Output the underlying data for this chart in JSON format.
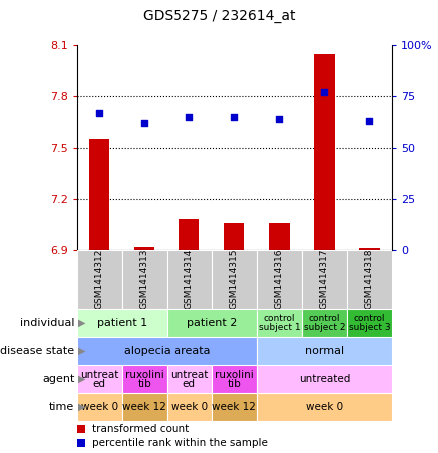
{
  "title": "GDS5275 / 232614_at",
  "samples": [
    "GSM1414312",
    "GSM1414313",
    "GSM1414314",
    "GSM1414315",
    "GSM1414316",
    "GSM1414317",
    "GSM1414318"
  ],
  "transformed_count": [
    7.55,
    6.92,
    7.08,
    7.06,
    7.06,
    8.05,
    6.91
  ],
  "percentile_rank": [
    67,
    62,
    65,
    65,
    64,
    77,
    63
  ],
  "ylim_left": [
    6.9,
    8.1
  ],
  "yticks_left": [
    6.9,
    7.2,
    7.5,
    7.8,
    8.1
  ],
  "ylim_right": [
    0,
    100
  ],
  "yticks_right": [
    0,
    25,
    50,
    75,
    100
  ],
  "bar_color": "#cc0000",
  "dot_color": "#0000cc",
  "annotation_rows": [
    {
      "label": "individual",
      "cells": [
        {
          "text": "patient 1",
          "span": [
            0,
            2
          ],
          "color": "#ccffcc",
          "fontsize": 8
        },
        {
          "text": "patient 2",
          "span": [
            2,
            4
          ],
          "color": "#99ee99",
          "fontsize": 8
        },
        {
          "text": "control\nsubject 1",
          "span": [
            4,
            5
          ],
          "color": "#99ee99",
          "fontsize": 6.5
        },
        {
          "text": "control\nsubject 2",
          "span": [
            5,
            6
          ],
          "color": "#55cc55",
          "fontsize": 6.5
        },
        {
          "text": "control\nsubject 3",
          "span": [
            6,
            7
          ],
          "color": "#33bb33",
          "fontsize": 6.5
        }
      ]
    },
    {
      "label": "disease state",
      "cells": [
        {
          "text": "alopecia areata",
          "span": [
            0,
            4
          ],
          "color": "#88aaff",
          "fontsize": 8
        },
        {
          "text": "normal",
          "span": [
            4,
            7
          ],
          "color": "#aaccff",
          "fontsize": 8
        }
      ]
    },
    {
      "label": "agent",
      "cells": [
        {
          "text": "untreat\ned",
          "span": [
            0,
            1
          ],
          "color": "#ffbbff",
          "fontsize": 7.5
        },
        {
          "text": "ruxolini\ntib",
          "span": [
            1,
            2
          ],
          "color": "#ee55ee",
          "fontsize": 7.5
        },
        {
          "text": "untreat\ned",
          "span": [
            2,
            3
          ],
          "color": "#ffbbff",
          "fontsize": 7.5
        },
        {
          "text": "ruxolini\ntib",
          "span": [
            3,
            4
          ],
          "color": "#ee55ee",
          "fontsize": 7.5
        },
        {
          "text": "untreated",
          "span": [
            4,
            7
          ],
          "color": "#ffbbff",
          "fontsize": 7.5
        }
      ]
    },
    {
      "label": "time",
      "cells": [
        {
          "text": "week 0",
          "span": [
            0,
            1
          ],
          "color": "#ffcc88",
          "fontsize": 7.5
        },
        {
          "text": "week 12",
          "span": [
            1,
            2
          ],
          "color": "#ddaa55",
          "fontsize": 7.5
        },
        {
          "text": "week 0",
          "span": [
            2,
            3
          ],
          "color": "#ffcc88",
          "fontsize": 7.5
        },
        {
          "text": "week 12",
          "span": [
            3,
            4
          ],
          "color": "#ddaa55",
          "fontsize": 7.5
        },
        {
          "text": "week 0",
          "span": [
            4,
            7
          ],
          "color": "#ffcc88",
          "fontsize": 7.5
        }
      ]
    }
  ],
  "legend_items": [
    {
      "label": "transformed count",
      "color": "#cc0000"
    },
    {
      "label": "percentile rank within the sample",
      "color": "#0000cc"
    }
  ],
  "sample_bg": "#cccccc",
  "dotted_yticks": [
    7.2,
    7.5,
    7.8
  ]
}
